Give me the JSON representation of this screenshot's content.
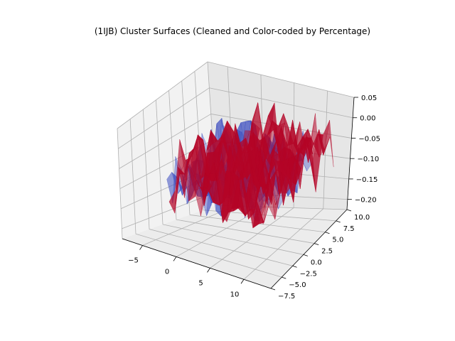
{
  "chart_data": {
    "type": "surface3d",
    "title": "(1IJB) Cluster Surfaces (Cleaned and Color-coded by Percentage)",
    "xlabel": "",
    "ylabel": "",
    "zlabel": "",
    "xlim": [
      -8,
      14
    ],
    "ylim": [
      -7.5,
      10
    ],
    "zlim": [
      -0.225,
      0.05
    ],
    "x_ticks": [
      "−5",
      "0",
      "5",
      "10"
    ],
    "y_ticks": [
      "−7.5",
      "−5.0",
      "−2.5",
      "0.0",
      "2.5",
      "5.0",
      "7.5",
      "10.0"
    ],
    "z_ticks": [
      "−0.20",
      "−0.15",
      "−0.10",
      "−0.05",
      "0.00",
      "0.05"
    ],
    "grid": true,
    "series": [
      {
        "color": "#3b4cc0",
        "x_range": [
          -2.5,
          10.5
        ],
        "y_range": [
          -5.5,
          6.5
        ],
        "z_range": [
          -0.2,
          0.0
        ]
      },
      {
        "color": "#b40426",
        "x_range": [
          -1.5,
          12.5
        ],
        "y_range": [
          -6.5,
          8.5
        ],
        "z_range": [
          -0.22,
          0.02
        ]
      }
    ]
  }
}
